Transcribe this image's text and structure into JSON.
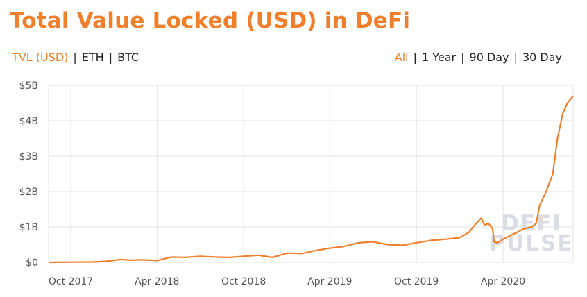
{
  "title": "Total Value Locked (USD) in DeFi",
  "currency_toggle": [
    {
      "label": "TVL (USD)",
      "active": true
    },
    {
      "label": "ETH",
      "active": false
    },
    {
      "label": "BTC",
      "active": false
    }
  ],
  "range_toggle": [
    {
      "label": "All",
      "active": true
    },
    {
      "label": "1 Year",
      "active": false
    },
    {
      "label": "90 Day",
      "active": false
    },
    {
      "label": "30 Day",
      "active": false
    }
  ],
  "separator": "|",
  "watermark": [
    "DEFI",
    "PULSE"
  ],
  "colors": {
    "accent": "#f07f2c",
    "grid": "#e3e3e3",
    "watermark": "#dcdce4"
  },
  "chart_data": {
    "type": "line",
    "title": "Total Value Locked (USD) in DeFi",
    "ylim": [
      0,
      5
    ],
    "y_unit": "USD billions",
    "yticks": [
      0,
      1,
      2,
      3,
      4,
      5
    ],
    "ytick_labels": [
      "$0",
      "$1B",
      "$2B",
      "$3B",
      "$4B",
      "$5B"
    ],
    "xlim": [
      "2017-08-15",
      "2020-08-27"
    ],
    "xtick_labels": [
      "Oct 2017",
      "Apr 2018",
      "Oct 2018",
      "Apr 2019",
      "Oct 2019",
      "Apr 2020"
    ],
    "xtick_dates": [
      "2017-10-01",
      "2018-04-01",
      "2018-10-01",
      "2019-04-01",
      "2019-10-01",
      "2020-04-01"
    ],
    "grid": true,
    "series": [
      {
        "color": "#f07f2c",
        "points": [
          [
            "2017-08-15",
            0.0
          ],
          [
            "2017-10-01",
            0.005
          ],
          [
            "2017-11-15",
            0.01
          ],
          [
            "2017-12-15",
            0.03
          ],
          [
            "2018-01-15",
            0.08
          ],
          [
            "2018-02-05",
            0.06
          ],
          [
            "2018-03-01",
            0.07
          ],
          [
            "2018-04-01",
            0.05
          ],
          [
            "2018-05-01",
            0.15
          ],
          [
            "2018-06-01",
            0.14
          ],
          [
            "2018-07-01",
            0.17
          ],
          [
            "2018-08-01",
            0.15
          ],
          [
            "2018-09-01",
            0.14
          ],
          [
            "2018-10-01",
            0.17
          ],
          [
            "2018-11-01",
            0.2
          ],
          [
            "2018-12-01",
            0.14
          ],
          [
            "2019-01-01",
            0.26
          ],
          [
            "2019-02-01",
            0.25
          ],
          [
            "2019-03-01",
            0.33
          ],
          [
            "2019-04-01",
            0.4
          ],
          [
            "2019-05-01",
            0.45
          ],
          [
            "2019-06-01",
            0.55
          ],
          [
            "2019-07-01",
            0.58
          ],
          [
            "2019-08-01",
            0.5
          ],
          [
            "2019-09-01",
            0.48
          ],
          [
            "2019-10-01",
            0.55
          ],
          [
            "2019-11-01",
            0.62
          ],
          [
            "2019-12-01",
            0.65
          ],
          [
            "2020-01-01",
            0.7
          ],
          [
            "2020-01-20",
            0.85
          ],
          [
            "2020-02-01",
            1.05
          ],
          [
            "2020-02-15",
            1.25
          ],
          [
            "2020-02-22",
            1.05
          ],
          [
            "2020-03-01",
            1.1
          ],
          [
            "2020-03-10",
            0.95
          ],
          [
            "2020-03-13",
            0.58
          ],
          [
            "2020-03-20",
            0.55
          ],
          [
            "2020-04-01",
            0.65
          ],
          [
            "2020-04-15",
            0.75
          ],
          [
            "2020-05-01",
            0.85
          ],
          [
            "2020-05-15",
            0.95
          ],
          [
            "2020-06-01",
            1.0
          ],
          [
            "2020-06-10",
            1.1
          ],
          [
            "2020-06-17",
            1.6
          ],
          [
            "2020-07-01",
            2.0
          ],
          [
            "2020-07-15",
            2.5
          ],
          [
            "2020-07-25",
            3.5
          ],
          [
            "2020-08-05",
            4.2
          ],
          [
            "2020-08-15",
            4.5
          ],
          [
            "2020-08-27",
            4.7
          ]
        ]
      }
    ]
  }
}
